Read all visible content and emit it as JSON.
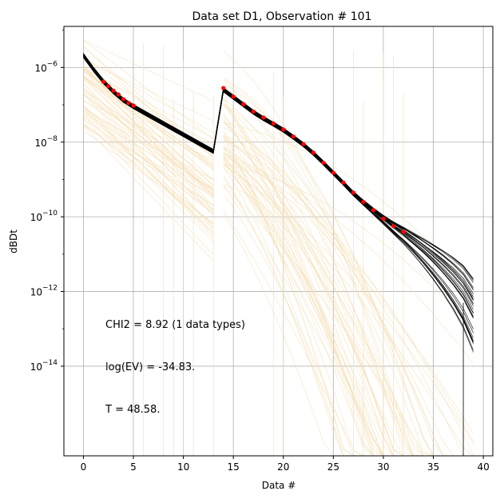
{
  "chart_data": {
    "type": "line",
    "title": "Data set D1, Observation # 101",
    "xlabel": "Data #",
    "ylabel": "dBDt",
    "yscale": "log",
    "xlim": [
      -1.95,
      40.95
    ],
    "ylim_exp": [
      -16.4,
      -4.9
    ],
    "grid": true,
    "x_ticks": [
      0,
      5,
      10,
      15,
      20,
      25,
      30,
      35,
      40
    ],
    "x_tick_labels": [
      "0",
      "5",
      "10",
      "15",
      "20",
      "25",
      "30",
      "35",
      "40"
    ],
    "y_ticks_exp": [
      -6,
      -8,
      -10,
      -12,
      -14
    ],
    "y_tick_labels": [
      "10",
      "10",
      "10",
      "10",
      "10"
    ],
    "y_tick_superscripts": [
      "−6",
      "−8",
      "−10",
      "−12",
      "−14"
    ],
    "annotations": [
      "CHI2 = 8.92 (1 data types)",
      "log(EV) = -34.83.",
      "T = 48.58."
    ],
    "series": [
      {
        "name": "prior realizations",
        "color": "#f5deb3",
        "count": 60,
        "gate_count": 40,
        "note": "faint wheat-colored curves spanning the full gate range"
      },
      {
        "name": "posterior realizations",
        "color": "#000000",
        "count": 30,
        "early_x": [
          0,
          1,
          2,
          3,
          4,
          5,
          6,
          7,
          8,
          9,
          10,
          11,
          12,
          13
        ],
        "early_log10_y": [
          -5.68,
          -6.05,
          -6.38,
          -6.65,
          -6.88,
          -7.05,
          -7.2,
          -7.35,
          -7.5,
          -7.65,
          -7.8,
          -7.95,
          -8.1,
          -8.25
        ],
        "late_x": [
          14,
          15,
          16,
          17,
          18,
          19,
          20,
          21,
          22,
          23,
          24,
          25,
          26,
          27,
          28,
          29,
          30,
          31,
          32,
          33,
          34,
          35,
          36,
          37,
          38,
          39
        ],
        "late_log10_y": [
          -6.6,
          -6.8,
          -7.0,
          -7.2,
          -7.37,
          -7.52,
          -7.68,
          -7.87,
          -8.07,
          -8.3,
          -8.56,
          -8.83,
          -9.1,
          -9.38,
          -9.62,
          -9.85,
          -10.07,
          -10.28,
          -10.48,
          -10.7,
          -10.93,
          -11.18,
          -11.45,
          -11.75,
          -12.1,
          -12.6
        ]
      },
      {
        "name": "observed data",
        "color": "#ff0000",
        "x": [
          2,
          2.5,
          3,
          3.5,
          4,
          4.5,
          5,
          14,
          15,
          16,
          17,
          18,
          19,
          20,
          21,
          22,
          23,
          24,
          25,
          26,
          27,
          28,
          29,
          30,
          31,
          32
        ],
        "log10_y": [
          -6.38,
          -6.5,
          -6.62,
          -6.72,
          -6.85,
          -6.95,
          -7.02,
          -6.55,
          -6.78,
          -6.98,
          -7.18,
          -7.34,
          -7.5,
          -7.66,
          -7.85,
          -8.05,
          -8.28,
          -8.55,
          -8.82,
          -9.08,
          -9.35,
          -9.6,
          -9.82,
          -10.05,
          -10.25,
          -10.4
        ]
      }
    ]
  }
}
